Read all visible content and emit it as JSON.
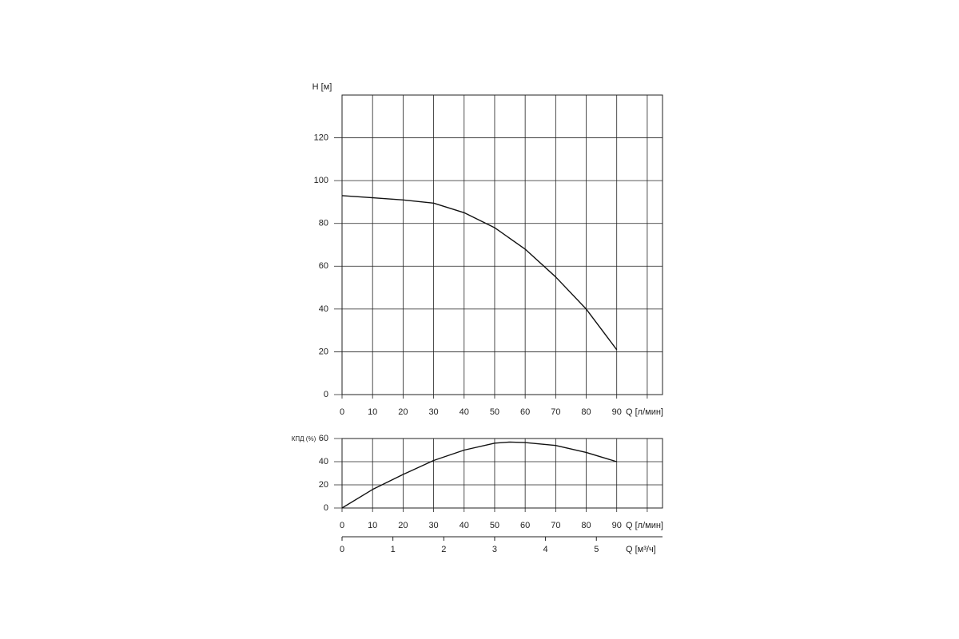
{
  "chart_data": [
    {
      "type": "line",
      "ylabel": "H [м]",
      "xlabel": "Q [л/мин]",
      "x": [
        0,
        10,
        20,
        30,
        40,
        50,
        60,
        70,
        80,
        90
      ],
      "series": [
        {
          "color": "#111111",
          "values": [
            93,
            92,
            91,
            89.5,
            85,
            78,
            68,
            55,
            40,
            21
          ]
        }
      ],
      "xlim": [
        0,
        105
      ],
      "xticks": [
        0,
        10,
        20,
        30,
        40,
        50,
        60,
        70,
        80,
        90
      ],
      "xgrid": [
        0,
        10,
        20,
        30,
        40,
        50,
        60,
        70,
        80,
        90,
        100
      ],
      "ylim": [
        0,
        140
      ],
      "yticks": [
        0,
        20,
        40,
        60,
        80,
        100,
        120
      ],
      "grid": true
    },
    {
      "type": "line",
      "ylabel": "КПД (%)",
      "xlabel": "Q [л/мин]",
      "x": [
        0,
        10,
        20,
        30,
        40,
        50,
        55,
        60,
        70,
        80,
        90
      ],
      "series": [
        {
          "color": "#111111",
          "values": [
            0,
            16,
            29,
            41,
            50,
            56,
            57,
            56.5,
            54,
            48,
            40
          ]
        }
      ],
      "xlim": [
        0,
        105
      ],
      "xticks": [
        0,
        10,
        20,
        30,
        40,
        50,
        60,
        70,
        80,
        90
      ],
      "xgrid": [
        0,
        10,
        20,
        30,
        40,
        50,
        60,
        70,
        80,
        90,
        100
      ],
      "ylim": [
        0,
        60
      ],
      "yticks": [
        0,
        20,
        40,
        60
      ],
      "grid": true
    },
    {
      "type": "axis",
      "xlabel": "Q [м³/ч]",
      "xlim": [
        0,
        6.3
      ],
      "xticks": [
        0,
        1,
        2,
        3,
        4,
        5
      ]
    }
  ]
}
